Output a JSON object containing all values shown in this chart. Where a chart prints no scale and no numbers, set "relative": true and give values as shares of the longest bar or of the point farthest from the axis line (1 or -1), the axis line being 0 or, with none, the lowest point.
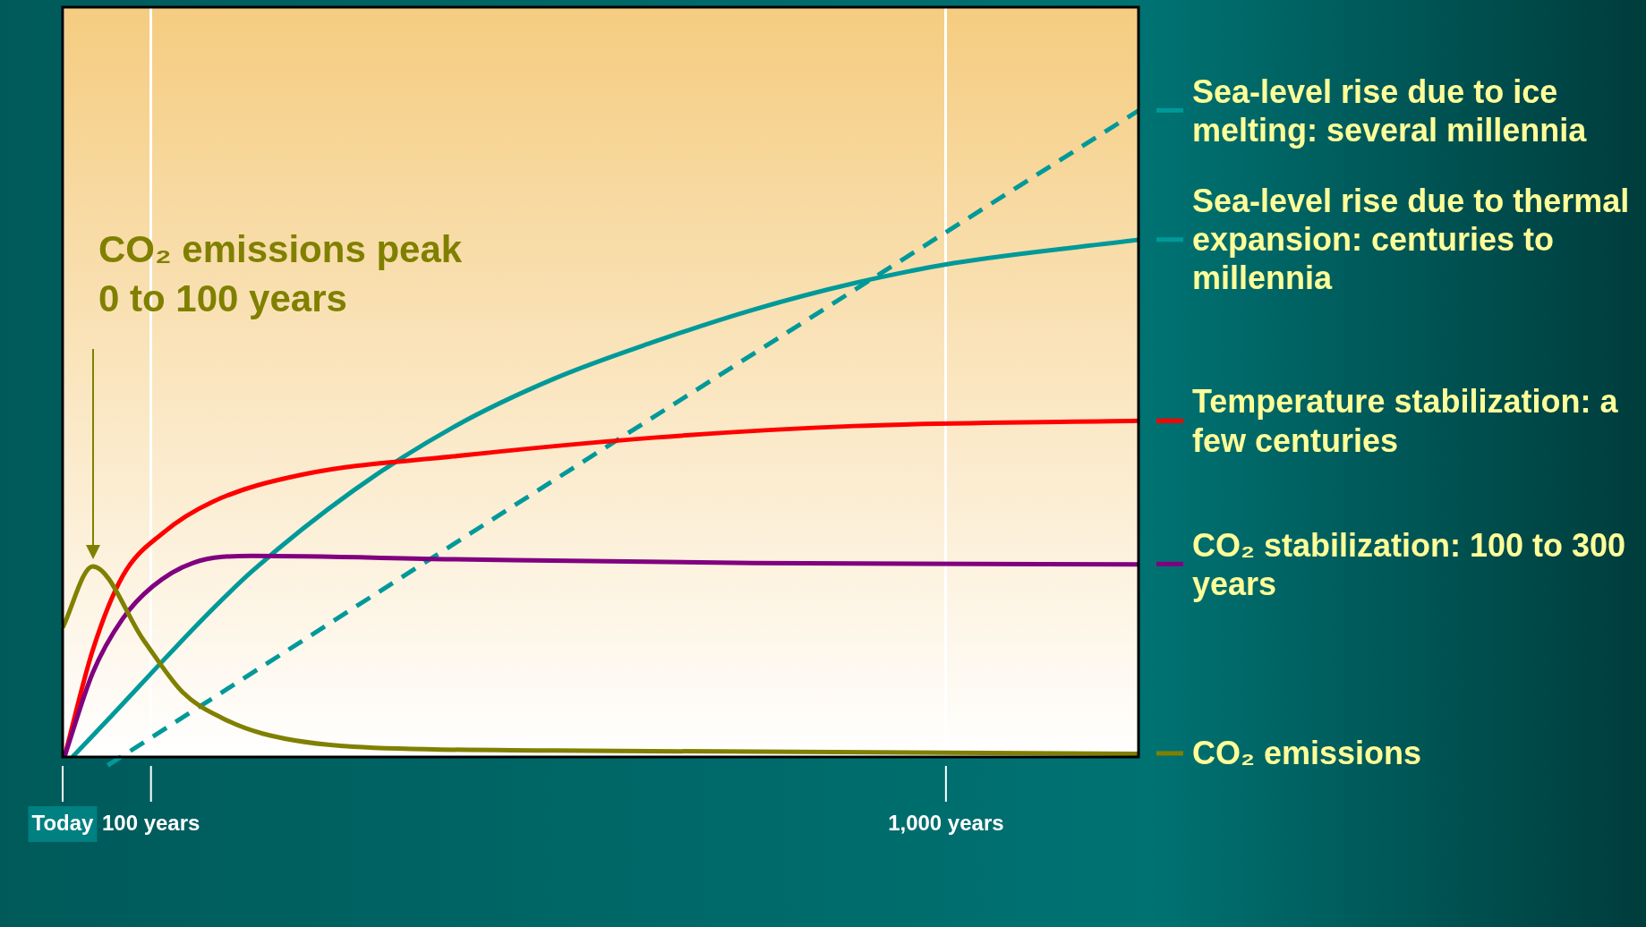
{
  "chart_data": {
    "type": "line",
    "relative": true,
    "xlim": [
      0,
      1218
    ],
    "xticks": [
      {
        "value": 0,
        "label": "Today"
      },
      {
        "value": 100,
        "label": "100 years"
      },
      {
        "value": 1000,
        "label": "1,000 years"
      }
    ],
    "grid": "x",
    "legend": "right",
    "marker": "none",
    "line_style": "solid",
    "annotations": [
      "CO₂ emissions peak",
      "0 to 100 years"
    ],
    "series": [
      {
        "name": "CO₂ emissions",
        "color": "#808000",
        "x": [
          0,
          34,
          92,
          136,
          181,
          227,
          329,
          556,
          1218
        ],
        "values": [
          0.2,
          0.295,
          0.18,
          0.1,
          0.06,
          0.036,
          0.016,
          0.01,
          0.005
        ]
      },
      {
        "name": "CO₂ stabilization: 100 to 300 years",
        "color": "#800080",
        "x": [
          2,
          34,
          68,
          102,
          147,
          215,
          442,
          782,
          1218
        ],
        "values": [
          0,
          0.13,
          0.214,
          0.264,
          0.3,
          0.311,
          0.306,
          0.3,
          0.298
        ]
      },
      {
        "name": "Temperature stabilization: a few centuries",
        "color": "#ff0000",
        "x": [
          2,
          34,
          68,
          113,
          170,
          272,
          442,
          669,
          896,
          1218
        ],
        "values": [
          0,
          0.165,
          0.28,
          0.346,
          0.395,
          0.437,
          0.465,
          0.494,
          0.512,
          0.52
        ]
      },
      {
        "name": "Sea-level rise due to thermal expansion: centuries to millennia",
        "color": "#009999",
        "x": [
          11,
          57,
          102,
          159,
          215,
          329,
          442,
          556,
          669,
          782,
          896,
          1009,
          1218
        ],
        "values": [
          0,
          0.066,
          0.132,
          0.214,
          0.288,
          0.412,
          0.51,
          0.585,
          0.642,
          0.692,
          0.733,
          0.764,
          0.8
        ]
      },
      {
        "name": "Sea-level rise due to ice melting: several millennia",
        "color": "#009999",
        "line_style": "dashed",
        "x": [
          51,
          556,
          1218
        ],
        "values": [
          -0.013,
          0.428,
          1
        ]
      }
    ]
  }
}
